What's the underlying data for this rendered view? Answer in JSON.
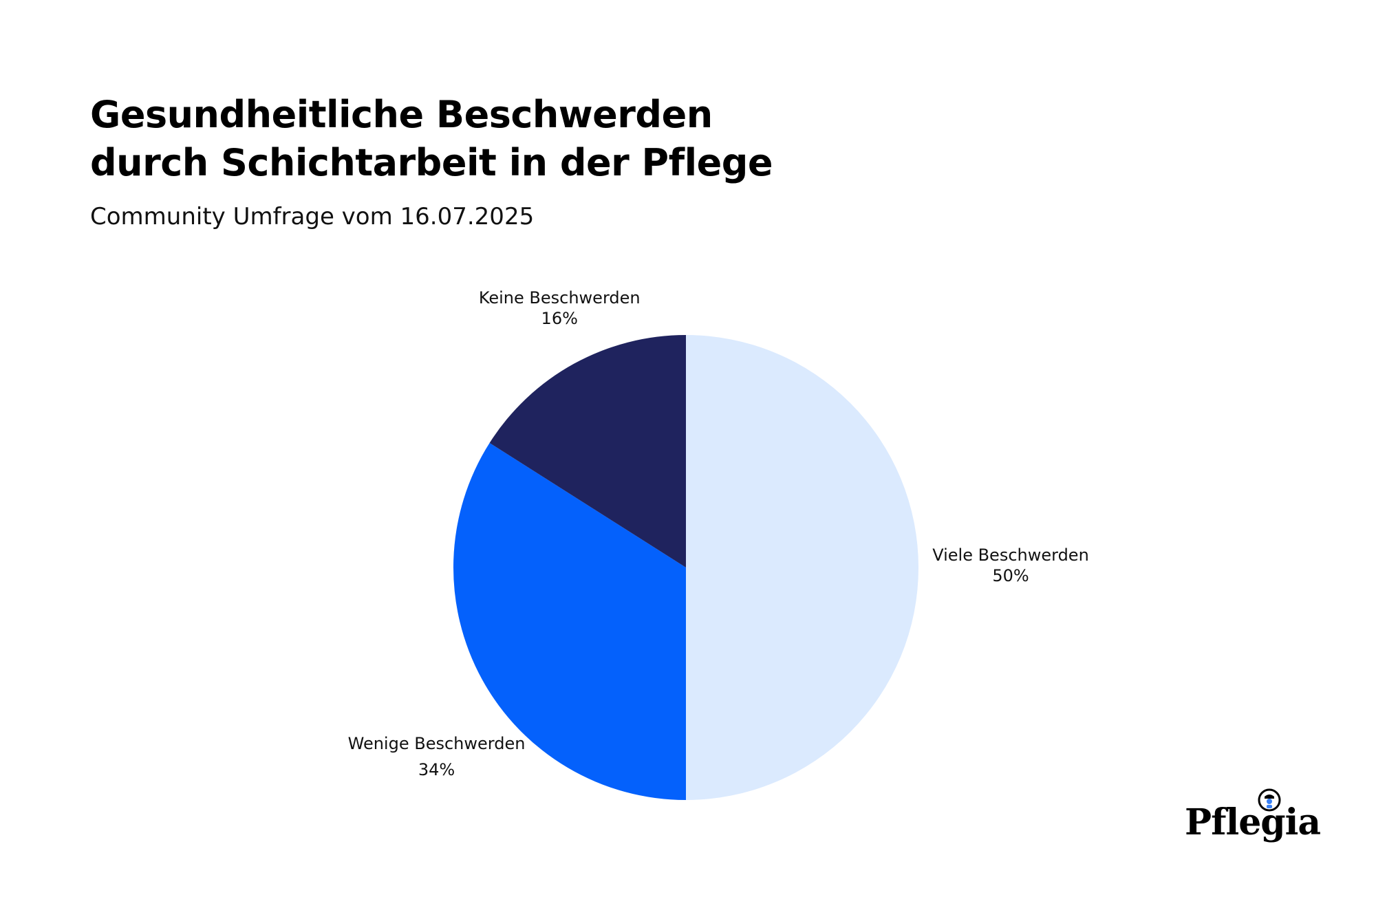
{
  "header": {
    "title_line1": "Gesundheitliche Beschwerden",
    "title_line2": "durch Schichtarbeit in der Pflege",
    "subtitle": "Community Umfrage vom 16.07.2025"
  },
  "chart_data": {
    "type": "pie",
    "title": "Gesundheitliche Beschwerden durch Schichtarbeit in der Pflege",
    "subtitle": "Community Umfrage vom 16.07.2025",
    "start": "12 o'clock",
    "direction": "clockwise",
    "slices": [
      {
        "label": "Viele Beschwerden",
        "value": 50,
        "value_label": "50%",
        "color": "#dbeafe"
      },
      {
        "label": "Wenige Beschwerden",
        "value": 34,
        "value_label": "34%",
        "color": "#0461fc"
      },
      {
        "label": "Keine Beschwerden",
        "value": 16,
        "value_label": "16%",
        "color": "#1f235e"
      }
    ]
  },
  "brand": {
    "logo_text": "Pflegia",
    "logo_icon": "nurse-icon"
  }
}
